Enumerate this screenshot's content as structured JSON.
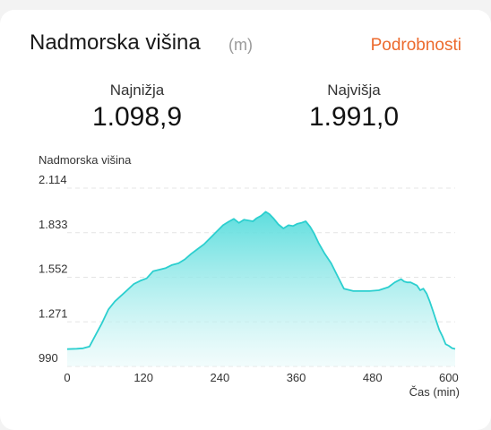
{
  "header": {
    "title": "Nadmorska višina",
    "unit": "(m)",
    "details_link": "Podrobnosti"
  },
  "stats": {
    "min_label": "Najnižja",
    "min_value": "1.098,9",
    "max_label": "Najvišja",
    "max_value": "1.991,0"
  },
  "colors": {
    "accent": "#ec6a2d",
    "line": "#2ccfcf",
    "fill_top": "#55dcdc",
    "fill_bottom": "#e9fafa"
  },
  "chart_data": {
    "type": "area",
    "ylabel": "Nadmorska višina",
    "xlabel": "Čas (min)",
    "x_ticks": [
      0,
      120,
      240,
      360,
      480,
      600
    ],
    "x_tick_labels": [
      "0",
      "120",
      "240",
      "360",
      "480",
      "600"
    ],
    "y_ticks": [
      990,
      1271,
      1552,
      1833,
      2114
    ],
    "y_tick_labels": [
      "990",
      "1.271",
      "1.552",
      "1.833",
      "2.114"
    ],
    "xlim": [
      0,
      610
    ],
    "ylim": [
      990,
      2114
    ],
    "grid": "horizontal dashed",
    "x": [
      0,
      15,
      25,
      30,
      35,
      45,
      55,
      65,
      75,
      90,
      105,
      115,
      125,
      135,
      145,
      155,
      165,
      175,
      185,
      195,
      205,
      215,
      225,
      235,
      245,
      255,
      262,
      270,
      278,
      285,
      292,
      298,
      305,
      312,
      318,
      325,
      332,
      340,
      348,
      355,
      362,
      368,
      375,
      382,
      388,
      395,
      405,
      415,
      425,
      435,
      450,
      465,
      475,
      490,
      505,
      515,
      525,
      530,
      535,
      540,
      550,
      555,
      560,
      565,
      570,
      575,
      580,
      585,
      590,
      595,
      600,
      605,
      610
    ],
    "y": [
      1099,
      1101,
      1104,
      1110,
      1115,
      1190,
      1265,
      1350,
      1400,
      1455,
      1510,
      1530,
      1545,
      1590,
      1600,
      1610,
      1630,
      1640,
      1665,
      1700,
      1730,
      1760,
      1800,
      1840,
      1880,
      1905,
      1920,
      1895,
      1915,
      1910,
      1905,
      1925,
      1940,
      1965,
      1950,
      1920,
      1885,
      1860,
      1880,
      1875,
      1890,
      1895,
      1905,
      1870,
      1830,
      1770,
      1700,
      1640,
      1560,
      1480,
      1465,
      1465,
      1465,
      1470,
      1490,
      1520,
      1540,
      1525,
      1520,
      1520,
      1500,
      1470,
      1480,
      1450,
      1400,
      1340,
      1280,
      1220,
      1180,
      1130,
      1120,
      1105,
      1100
    ]
  }
}
